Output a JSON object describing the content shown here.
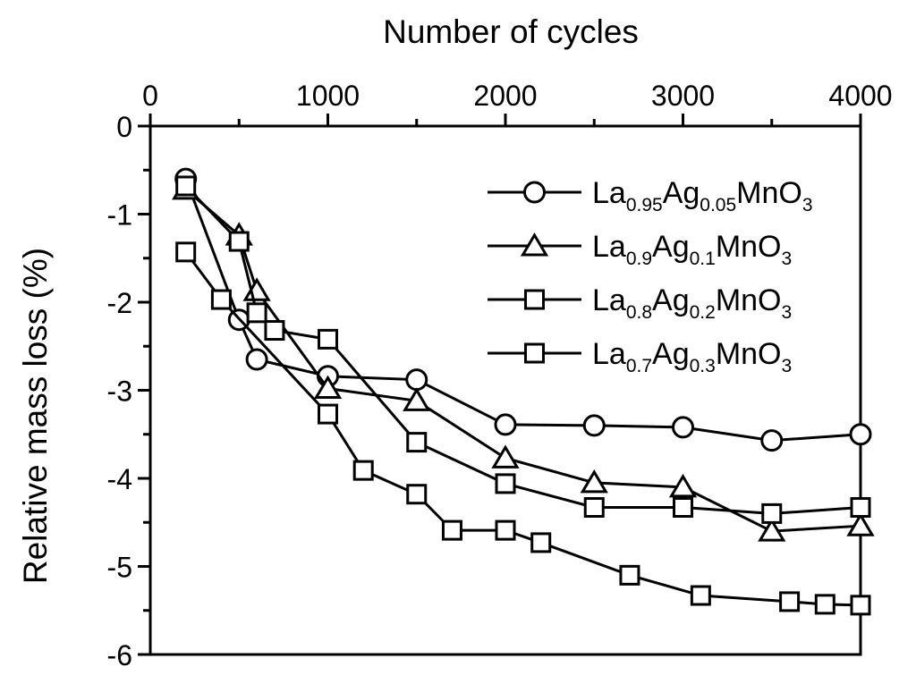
{
  "chart_data": {
    "type": "line",
    "title": "",
    "xlabel": "Number of cycles",
    "ylabel": "Relative mass loss (%)",
    "grid": false,
    "legend_position": "inside upper right",
    "line_color": "#000000",
    "background_color": "#ffffff",
    "marker_fill": "#ffffff",
    "x_axis": {
      "min": 0,
      "max": 4000,
      "major_ticks": [
        0,
        1000,
        2000,
        3000,
        4000
      ],
      "major_tick_labels": [
        "0",
        "1000",
        "2000",
        "3000",
        "4000"
      ],
      "minor_step": 500,
      "position": "top"
    },
    "y_axis": {
      "min": -6,
      "max": 0,
      "major_ticks": [
        0,
        -1,
        -2,
        -3,
        -4,
        -5,
        -6
      ],
      "major_tick_labels": [
        "0",
        "-1",
        "-2",
        "-3",
        "-4",
        "-5",
        "-6"
      ],
      "minor_step": 0.5,
      "position": "left"
    },
    "series": [
      {
        "name": "La0.95Ag0.05MnO3",
        "label_parts": [
          [
            "La",
            false
          ],
          [
            "0.95",
            true
          ],
          [
            "Ag",
            false
          ],
          [
            "0.05",
            true
          ],
          [
            "MnO",
            false
          ],
          [
            "3",
            true
          ]
        ],
        "marker": "circle",
        "points": [
          [
            200,
            -0.6
          ],
          [
            500,
            -2.2
          ],
          [
            600,
            -2.65
          ],
          [
            1000,
            -2.84
          ],
          [
            1500,
            -2.88
          ],
          [
            2000,
            -3.39
          ],
          [
            2500,
            -3.4
          ],
          [
            3000,
            -3.42
          ],
          [
            3500,
            -3.57
          ],
          [
            4000,
            -3.5
          ]
        ]
      },
      {
        "name": "La0.9Ag0.1MnO3",
        "label_parts": [
          [
            "La",
            false
          ],
          [
            "0.9",
            true
          ],
          [
            "Ag",
            false
          ],
          [
            "0.1",
            true
          ],
          [
            "MnO",
            false
          ],
          [
            "3",
            true
          ]
        ],
        "marker": "triangle",
        "points": [
          [
            200,
            -0.72
          ],
          [
            500,
            -1.24
          ],
          [
            600,
            -1.87
          ],
          [
            1000,
            -2.98
          ],
          [
            1500,
            -3.12
          ],
          [
            2000,
            -3.77
          ],
          [
            2500,
            -4.05
          ],
          [
            3000,
            -4.1
          ],
          [
            3500,
            -4.6
          ],
          [
            4000,
            -4.54
          ]
        ]
      },
      {
        "name": "La0.8Ag0.2MnO3",
        "label_parts": [
          [
            "La",
            false
          ],
          [
            "0.8",
            true
          ],
          [
            "Ag",
            false
          ],
          [
            "0.2",
            true
          ],
          [
            "MnO",
            false
          ],
          [
            "3",
            true
          ]
        ],
        "marker": "square",
        "points": [
          [
            200,
            -0.68
          ],
          [
            500,
            -1.31
          ],
          [
            600,
            -2.12
          ],
          [
            700,
            -2.32
          ],
          [
            1000,
            -2.42
          ],
          [
            1500,
            -3.59
          ],
          [
            2000,
            -4.06
          ],
          [
            2500,
            -4.33
          ],
          [
            3000,
            -4.33
          ],
          [
            3500,
            -4.4
          ],
          [
            4000,
            -4.33
          ]
        ]
      },
      {
        "name": "La0.7Ag0.3MnO3",
        "label_parts": [
          [
            "La",
            false
          ],
          [
            "0.7",
            true
          ],
          [
            "Ag",
            false
          ],
          [
            "0.3",
            true
          ],
          [
            "MnO",
            false
          ],
          [
            "3",
            true
          ]
        ],
        "marker": "square",
        "points": [
          [
            200,
            -1.43
          ],
          [
            400,
            -1.97
          ],
          [
            1000,
            -3.27
          ],
          [
            1200,
            -3.91
          ],
          [
            1500,
            -4.18
          ],
          [
            1700,
            -4.59
          ],
          [
            2000,
            -4.59
          ],
          [
            2200,
            -4.73
          ],
          [
            2700,
            -5.1
          ],
          [
            3100,
            -5.33
          ],
          [
            3600,
            -5.4
          ],
          [
            3800,
            -5.43
          ],
          [
            4000,
            -5.44
          ]
        ]
      }
    ]
  }
}
